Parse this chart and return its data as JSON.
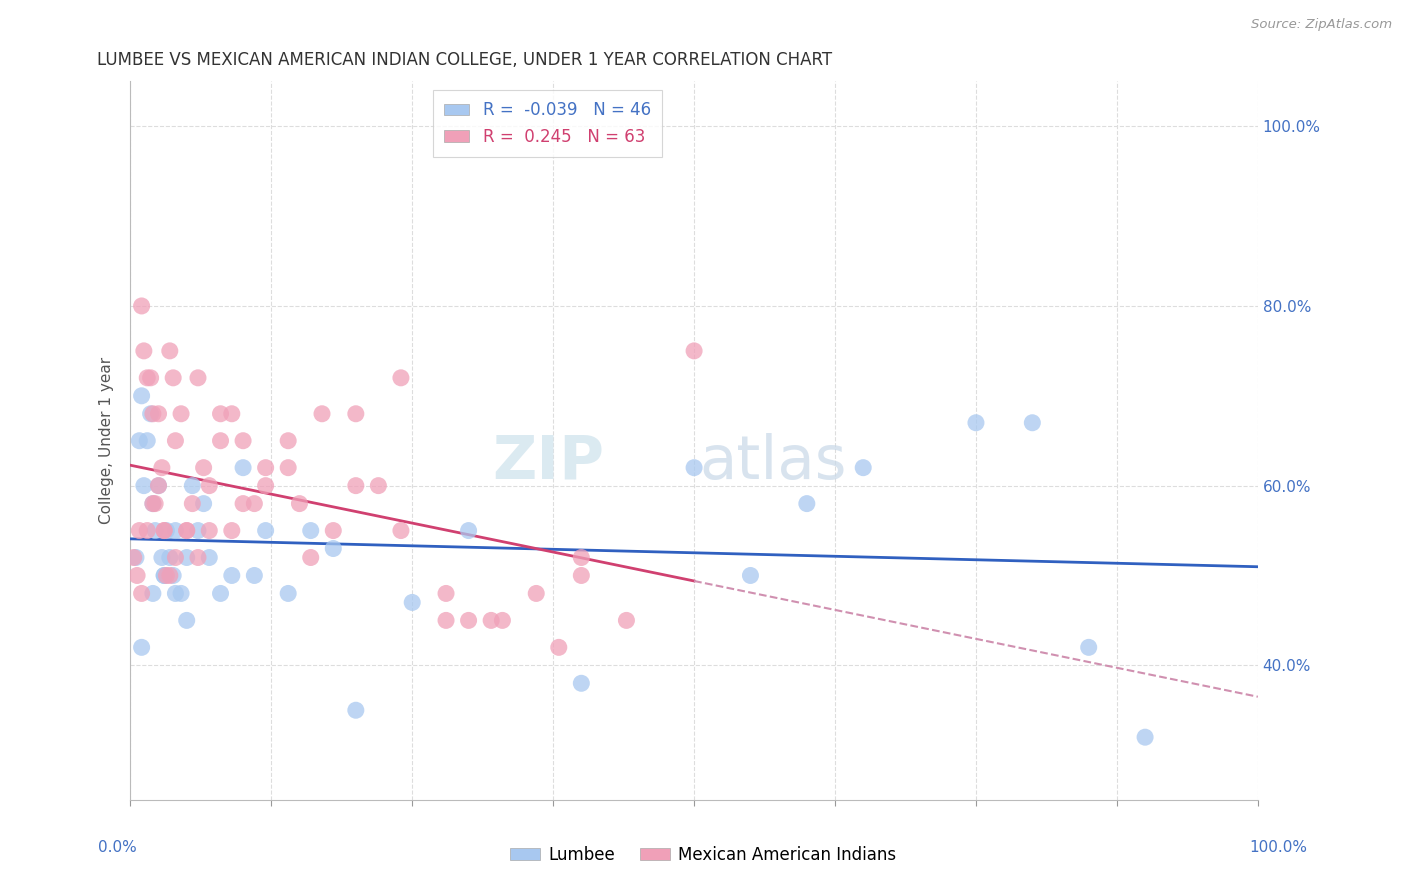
{
  "title": "LUMBEE VS MEXICAN AMERICAN INDIAN COLLEGE, UNDER 1 YEAR CORRELATION CHART",
  "source": "Source: ZipAtlas.com",
  "ylabel": "College, Under 1 year",
  "legend_lumbee": "Lumbee",
  "legend_mexican": "Mexican American Indians",
  "r_lumbee": -0.039,
  "n_lumbee": 46,
  "r_mexican": 0.245,
  "n_mexican": 63,
  "color_lumbee": "#a8c8f0",
  "color_mexican": "#f0a0b8",
  "line_color_lumbee": "#3060c0",
  "line_color_mexican": "#d04070",
  "line_color_mexican_dashed": "#d090b0",
  "background_color": "#ffffff",
  "watermark_zip": "ZIP",
  "watermark_atlas": "atlas",
  "lumbee_x": [
    0.5,
    0.8,
    1.0,
    1.2,
    1.5,
    1.8,
    2.0,
    2.2,
    2.5,
    2.8,
    3.0,
    3.2,
    3.5,
    3.8,
    4.0,
    4.5,
    5.0,
    5.5,
    6.0,
    6.5,
    7.0,
    8.0,
    9.0,
    10.0,
    11.0,
    12.0,
    14.0,
    16.0,
    18.0,
    20.0,
    25.0,
    30.0,
    40.0,
    50.0,
    55.0,
    60.0,
    65.0,
    75.0,
    80.0,
    85.0,
    90.0,
    1.0,
    2.0,
    3.0,
    4.0,
    5.0
  ],
  "lumbee_y": [
    52,
    65,
    70,
    60,
    65,
    68,
    58,
    55,
    60,
    52,
    50,
    55,
    52,
    50,
    55,
    48,
    52,
    60,
    55,
    58,
    52,
    48,
    50,
    62,
    50,
    55,
    48,
    55,
    53,
    35,
    47,
    55,
    38,
    62,
    50,
    58,
    62,
    67,
    67,
    42,
    32,
    42,
    48,
    50,
    48,
    45
  ],
  "mexican_x": [
    0.3,
    0.6,
    0.8,
    1.0,
    1.2,
    1.5,
    1.8,
    2.0,
    2.2,
    2.5,
    2.8,
    3.0,
    3.2,
    3.5,
    3.8,
    4.0,
    4.5,
    5.0,
    5.5,
    6.0,
    6.5,
    7.0,
    8.0,
    9.0,
    10.0,
    11.0,
    12.0,
    14.0,
    15.0,
    17.0,
    20.0,
    22.0,
    24.0,
    28.0,
    30.0,
    33.0,
    38.0,
    40.0,
    44.0,
    50.0,
    1.0,
    1.5,
    2.0,
    2.5,
    3.0,
    3.5,
    4.0,
    5.0,
    6.0,
    7.0,
    8.0,
    9.0,
    10.0,
    12.0,
    14.0,
    16.0,
    18.0,
    20.0,
    24.0,
    28.0,
    32.0,
    36.0,
    40.0
  ],
  "mexican_y": [
    52,
    50,
    55,
    80,
    75,
    72,
    72,
    68,
    58,
    68,
    62,
    55,
    50,
    75,
    72,
    65,
    68,
    55,
    58,
    72,
    62,
    60,
    68,
    68,
    65,
    58,
    62,
    65,
    58,
    68,
    68,
    60,
    72,
    48,
    45,
    45,
    42,
    50,
    45,
    75,
    48,
    55,
    58,
    60,
    55,
    50,
    52,
    55,
    52,
    55,
    65,
    55,
    58,
    60,
    62,
    52,
    55,
    60,
    55,
    45,
    45,
    48,
    52
  ],
  "xlim": [
    0,
    100
  ],
  "ylim": [
    25,
    105
  ],
  "yticks": [
    40,
    60,
    80,
    100
  ],
  "xticks": [
    0,
    12.5,
    25,
    37.5,
    50,
    62.5,
    75,
    87.5,
    100
  ],
  "grid_color": "#dddddd",
  "tick_color_blue": "#4472c4",
  "title_fontsize": 12,
  "axis_fontsize": 11,
  "legend_fontsize": 12
}
